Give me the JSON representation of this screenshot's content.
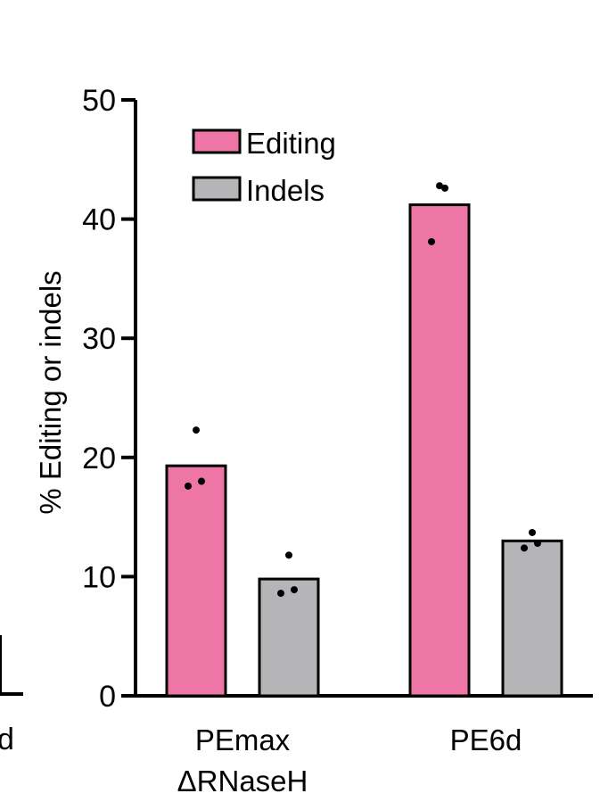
{
  "chart_data": {
    "type": "bar",
    "categories": [
      [
        "PEmax",
        "ΔRNaseH"
      ],
      [
        "PE6d"
      ]
    ],
    "series": [
      {
        "name": "Editing",
        "color": "#EE76A7",
        "values": [
          19.3,
          41.2
        ],
        "points": [
          [
            17.6,
            18.0,
            22.3
          ],
          [
            38.1,
            42.6,
            42.8
          ]
        ]
      },
      {
        "name": "Indels",
        "color": "#B5B5B8",
        "values": [
          9.8,
          13.0
        ],
        "points": [
          [
            8.6,
            8.9,
            11.8
          ],
          [
            12.4,
            12.8,
            13.7
          ]
        ]
      }
    ],
    "ylabel": "% Editing or indels",
    "ylim": [
      0,
      50
    ],
    "yticks": [
      0,
      10,
      20,
      30,
      40,
      50
    ],
    "legend_position": "top-left",
    "grid": false,
    "cut_off_text": "d"
  }
}
